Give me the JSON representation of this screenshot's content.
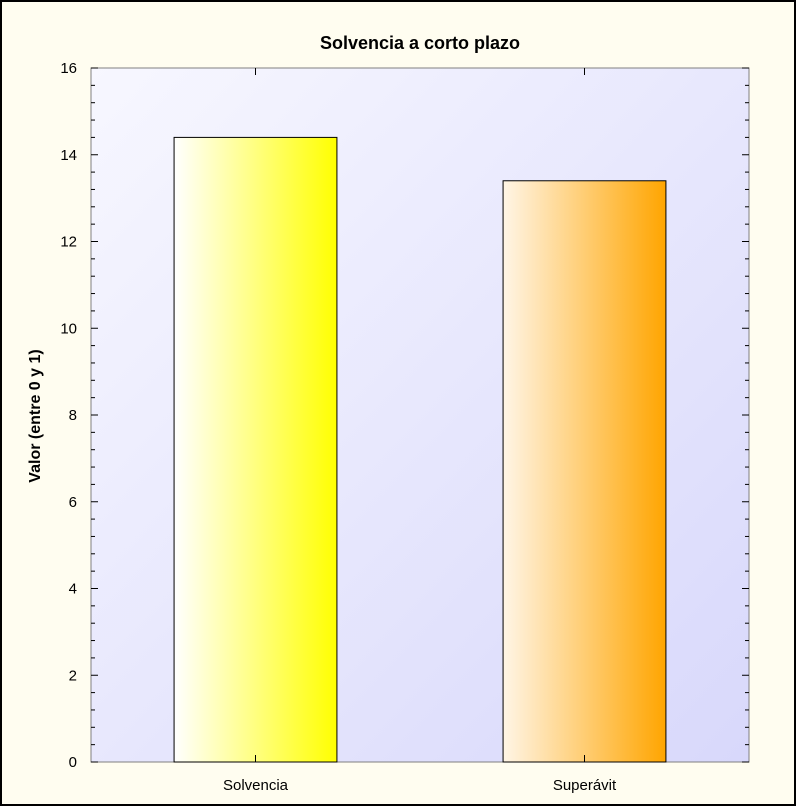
{
  "colors": {
    "frame_bg": "#fffdf0",
    "frame_border": "#000000",
    "plot_bg_start": "#f7f7ff",
    "plot_bg_end": "#d8d8fb"
  },
  "chart_data": {
    "type": "bar",
    "title": "Solvencia a corto plazo",
    "ylabel": "Valor (entre 0 y 1)",
    "xlabel": "",
    "ylim": [
      0,
      16
    ],
    "yticks": [
      0,
      2,
      4,
      6,
      8,
      10,
      12,
      14,
      16
    ],
    "grid": false,
    "categories": [
      "Solvencia",
      "Superávit"
    ],
    "values": [
      14.4,
      13.4
    ],
    "bar_colors": [
      {
        "from": "#ffffff",
        "to": "#ffff00"
      },
      {
        "from": "#fff5e6",
        "to": "#ffa500"
      }
    ]
  }
}
